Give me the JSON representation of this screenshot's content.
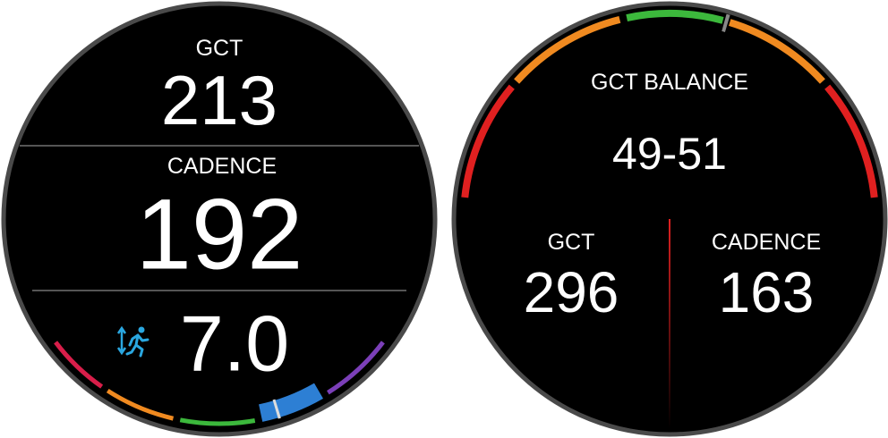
{
  "left_screen": {
    "fields": [
      {
        "label": "GCT",
        "value": "213"
      },
      {
        "label": "CADENCE",
        "value": "192"
      },
      {
        "value": "7.0"
      }
    ]
  },
  "right_screen": {
    "title": "GCT BALANCE",
    "value": "49-51",
    "fields": [
      {
        "label": "GCT",
        "value": "296"
      },
      {
        "label": "CADENCE",
        "value": "163"
      }
    ]
  }
}
